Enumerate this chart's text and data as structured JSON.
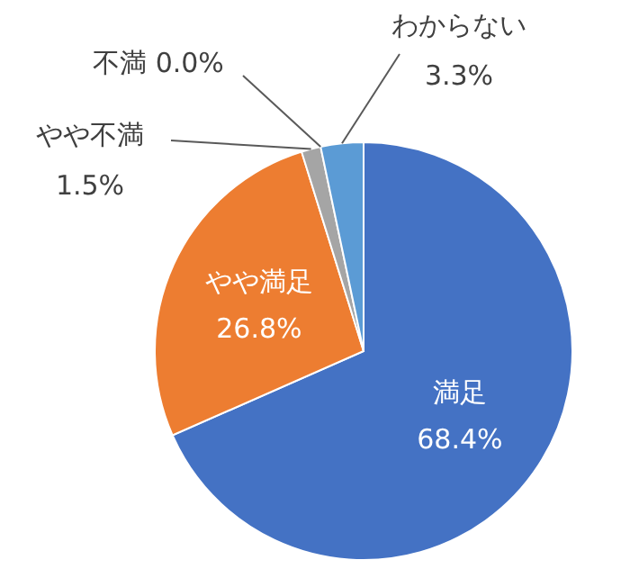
{
  "chart_data": {
    "type": "pie",
    "categories": [
      "満足",
      "やや満足",
      "やや不満",
      "不満",
      "わからない"
    ],
    "values": [
      68.4,
      26.8,
      1.5,
      0.0,
      3.3
    ],
    "colors": [
      "#4472c4",
      "#ed7d31",
      "#a5a5a5",
      "#ffc000",
      "#5b9bd5"
    ],
    "value_labels": [
      "68.4%",
      "26.8%",
      "1.5%",
      "0.0%",
      "3.3%"
    ]
  }
}
